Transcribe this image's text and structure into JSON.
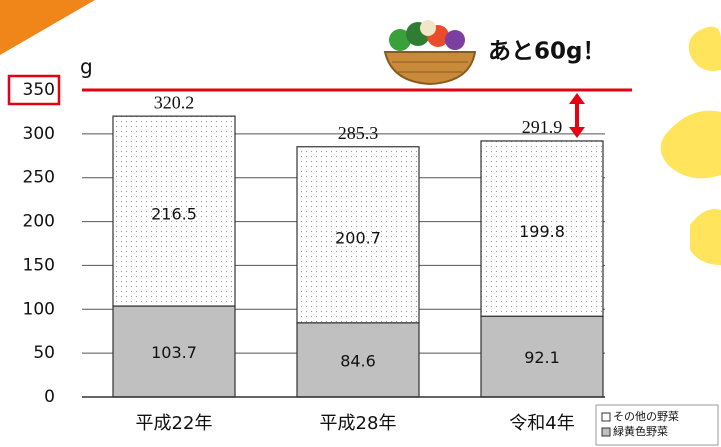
{
  "chart_data": {
    "type": "stacked_bar",
    "unit_label": "g",
    "annotation": "あと60g！",
    "categories": [
      "平成22年",
      "平成28年",
      "令和4年"
    ],
    "series": [
      {
        "name": "緑黄色野菜",
        "color": "#c0c0c0",
        "values": [
          103.7,
          84.6,
          92.1
        ]
      },
      {
        "name": "その他の野菜",
        "color": "#ffffff",
        "values": [
          216.5,
          200.7,
          199.8
        ]
      }
    ],
    "totals": [
      320.2,
      285.3,
      291.9
    ],
    "reference_line": {
      "value": 350,
      "color": "#e60012"
    },
    "ylim": [
      0,
      350
    ],
    "yticks": [
      0,
      50,
      100,
      150,
      200,
      250,
      300,
      350
    ],
    "grid": true
  }
}
